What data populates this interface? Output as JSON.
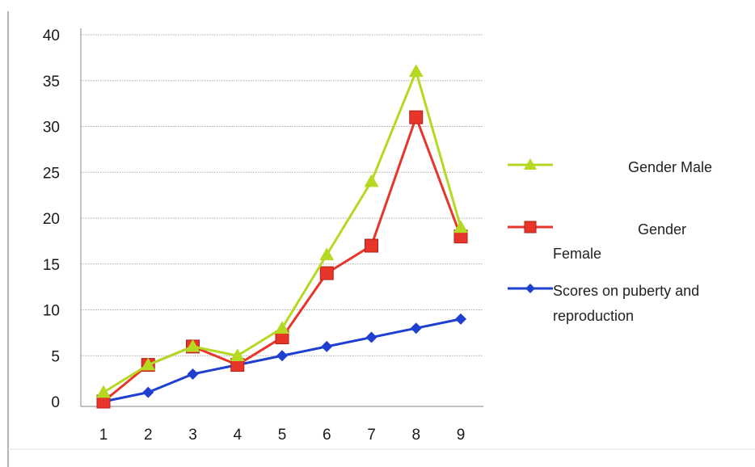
{
  "caption": "",
  "chart_data": {
    "type": "line",
    "categories": [
      "1",
      "2",
      "3",
      "4",
      "5",
      "6",
      "7",
      "8",
      "9"
    ],
    "ylim": [
      0,
      40
    ],
    "yticks": [
      0,
      5,
      10,
      15,
      20,
      25,
      30,
      35,
      40
    ],
    "grid": true,
    "legend_position": "right",
    "series": [
      {
        "name": "Gender Male",
        "name_lines": [
          "Gender Male"
        ],
        "marker": "triangle",
        "color": "#b5d922",
        "values": [
          1,
          4,
          6,
          5,
          8,
          16,
          24,
          36,
          19
        ]
      },
      {
        "name": "Gender Female",
        "name_lines": [
          "Gender",
          "Female"
        ],
        "marker": "square",
        "color": "#e8352a",
        "values": [
          0,
          4,
          6,
          4,
          7,
          14,
          17,
          31,
          18
        ]
      },
      {
        "name": "Scores on puberty and reproduction",
        "name_lines": [
          "Scores on puberty and",
          "reproduction"
        ],
        "marker": "diamond",
        "color": "#1f3fd1",
        "values": [
          0,
          1,
          3,
          4,
          5,
          6,
          7,
          8,
          9
        ]
      }
    ]
  }
}
